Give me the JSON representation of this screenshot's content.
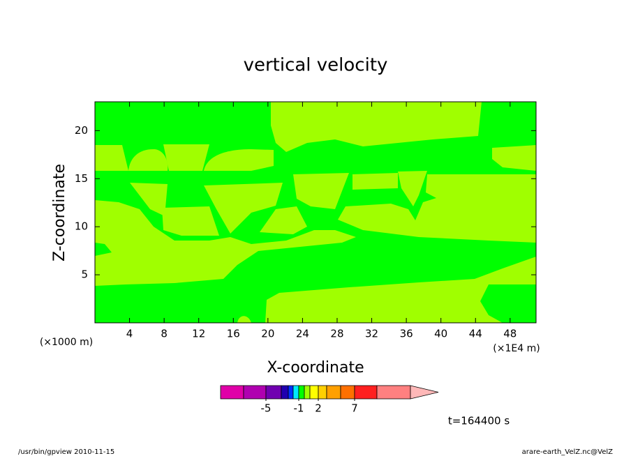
{
  "chart_data": {
    "type": "contour",
    "title": "vertical velocity",
    "x_label": "X-coordinate",
    "y_label": "Z-coordinate",
    "x_unit_left": "(×1000 m)",
    "x_unit_right": "(×1E4 m)",
    "xlim": [
      0,
      51
    ],
    "ylim": [
      0,
      23
    ],
    "xticks": [
      4,
      8,
      12,
      16,
      20,
      24,
      28,
      32,
      36,
      40,
      44,
      48
    ],
    "yticks": [
      5,
      10,
      15,
      20
    ],
    "colorbar": {
      "bounds": [
        -10,
        -7,
        -5,
        -4,
        -3,
        -2,
        -1,
        0,
        1,
        2,
        3,
        5,
        7,
        10,
        15
      ],
      "colors": [
        "#e000a8",
        "#b000b0",
        "#7000b0",
        "#2000b0",
        "#0030ff",
        "#00e8ff",
        "#00ff00",
        "#a0ff00",
        "#ffff00",
        "#ffd000",
        "#ffa000",
        "#ff7000",
        "#ff2020",
        "#ff8080"
      ],
      "extend_color": "#ffb8b8",
      "ticks": [
        -5,
        -1,
        2,
        7
      ]
    },
    "time_label": "t=164400 s",
    "footer_left": "/usr/bin/gpview  2010-11-15",
    "footer_right": "arare-earth_VelZ.nc@VelZ"
  }
}
